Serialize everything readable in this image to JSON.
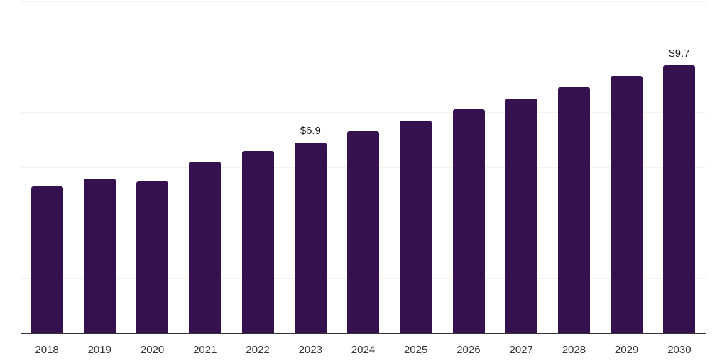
{
  "chart_data": {
    "type": "bar",
    "categories": [
      "2018",
      "2019",
      "2020",
      "2021",
      "2022",
      "2023",
      "2024",
      "2025",
      "2026",
      "2027",
      "2028",
      "2029",
      "2030"
    ],
    "values": [
      5.3,
      5.6,
      5.5,
      6.2,
      6.6,
      6.9,
      7.3,
      7.7,
      8.1,
      8.5,
      8.9,
      9.3,
      9.7
    ],
    "data_labels": [
      "",
      "",
      "",
      "",
      "",
      "$6.9",
      "",
      "",
      "",
      "",
      "",
      "",
      "$9.7"
    ],
    "title": "",
    "xlabel": "",
    "ylabel": "",
    "ylim": [
      0,
      12
    ],
    "yticks": [
      2,
      4,
      6,
      8,
      10,
      12
    ],
    "grid": true,
    "legend_position": "none",
    "value_prefix": "$"
  },
  "colors": {
    "bar": "#36114F",
    "background": "#ffffff",
    "gridline": "#f2f2f2",
    "axis_line": "#333333",
    "tick_label": "#333333",
    "data_label": "#111111"
  }
}
